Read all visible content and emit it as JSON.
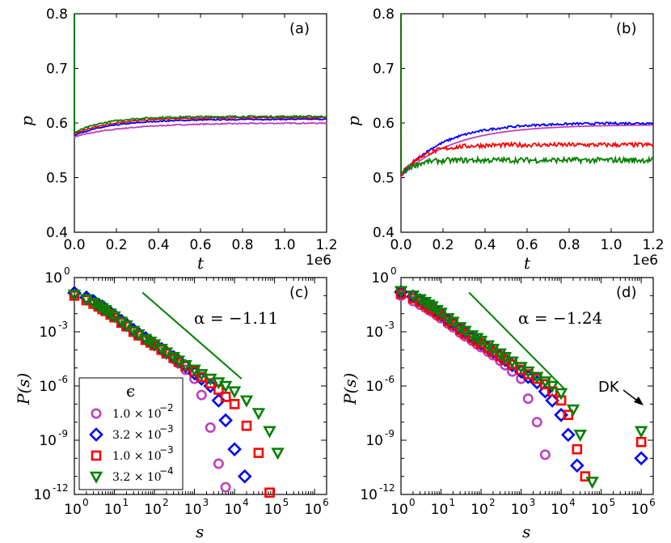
{
  "figure": {
    "y_label_p": "p",
    "x_label_t": "t",
    "y_label_P": "P(s)",
    "x_label_s": "s",
    "offset_text": "1e6",
    "dk_label": "DK"
  },
  "legend": {
    "title": "ϵ",
    "entries": [
      {
        "label": "1.0 × 10",
        "exp": "−2",
        "marker": "circle",
        "color": "#bf3fbf"
      },
      {
        "label": "3.2 × 10",
        "exp": "−3",
        "marker": "diamond",
        "color": "#0000ff"
      },
      {
        "label": "1.0 × 10",
        "exp": "−3",
        "marker": "square",
        "color": "#ff0000"
      },
      {
        "label": "3.2 × 10",
        "exp": "−4",
        "marker": "triangle-down",
        "color": "#008000"
      }
    ]
  },
  "chart_data": [
    {
      "panel": "(a)",
      "type": "line",
      "xlabel": "t",
      "ylabel": "p",
      "xlim": [
        0,
        1.2
      ],
      "ylim": [
        0.4,
        0.8
      ],
      "x_ticks": [
        "0.0",
        "0.2",
        "0.4",
        "0.6",
        "0.8",
        "1.0",
        "1.2"
      ],
      "y_ticks": [
        "0.4",
        "0.5",
        "0.6",
        "0.7",
        "0.8"
      ],
      "series": [
        {
          "name": "1.0e-2",
          "color": "#bf3fbf",
          "start": 0.575,
          "final": 0.6,
          "tau": 0.25,
          "noise": 0.001
        },
        {
          "name": "3.2e-3",
          "color": "#0000ff",
          "start": 0.578,
          "final": 0.607,
          "tau": 0.2,
          "noise": 0.001
        },
        {
          "name": "1.0e-3",
          "color": "#ff0000",
          "start": 0.58,
          "final": 0.61,
          "tau": 0.18,
          "noise": 0.001
        },
        {
          "name": "3.2e-4",
          "color": "#008000",
          "start": 0.582,
          "final": 0.612,
          "tau": 0.15,
          "noise": 0.0015
        }
      ]
    },
    {
      "panel": "(b)",
      "type": "line",
      "xlabel": "t",
      "ylabel": "p",
      "xlim": [
        0,
        1.2
      ],
      "ylim": [
        0.4,
        0.8
      ],
      "x_ticks": [
        "0.0",
        "0.2",
        "0.4",
        "0.6",
        "0.8",
        "1.0",
        "1.2"
      ],
      "y_ticks": [
        "0.4",
        "0.5",
        "0.6",
        "0.7",
        "0.8"
      ],
      "series": [
        {
          "name": "1.0e-2",
          "color": "#bf3fbf",
          "start": 0.502,
          "final": 0.597,
          "tau": 0.25,
          "noise": 0.0
        },
        {
          "name": "3.2e-3",
          "color": "#0000ff",
          "start": 0.503,
          "final": 0.6,
          "tau": 0.2,
          "noise": 0.002
        },
        {
          "name": "1.0e-3",
          "color": "#ff0000",
          "start": 0.504,
          "final": 0.56,
          "tau": 0.1,
          "noise": 0.004
        },
        {
          "name": "3.2e-4",
          "color": "#008000",
          "start": 0.505,
          "final": 0.532,
          "tau": 0.06,
          "noise": 0.005
        }
      ]
    },
    {
      "panel": "(c)",
      "type": "scatter",
      "xlabel": "s",
      "ylabel": "P(s)",
      "xscale": "log",
      "yscale": "log",
      "xlim_log10": [
        0,
        6.3
      ],
      "ylim_log10": [
        -12,
        0
      ],
      "annotation": "α = −1.11",
      "guide_line": {
        "s": [
          50,
          15000
        ],
        "P": [
          0.15,
          2.5e-06
        ]
      },
      "series": [
        {
          "name": "1.0e-2",
          "marker": "circle",
          "color": "#bf3fbf",
          "s": [
            1,
            2,
            3,
            4,
            5,
            6,
            8,
            10,
            15,
            20,
            30,
            40,
            60,
            80,
            100,
            150,
            200,
            300,
            400,
            600,
            1000,
            1500,
            2500,
            4000,
            6000
          ],
          "logP": [
            -0.9,
            -1.15,
            -1.35,
            -1.55,
            -1.65,
            -1.8,
            -2.0,
            -2.15,
            -2.45,
            -2.65,
            -2.95,
            -3.15,
            -3.4,
            -3.6,
            -3.75,
            -4.0,
            -4.2,
            -4.5,
            -4.75,
            -5.1,
            -5.6,
            -6.5,
            -8.3,
            -10.3,
            -11.6
          ]
        },
        {
          "name": "3.2e-3",
          "marker": "diamond",
          "color": "#0000ff",
          "s": [
            1,
            2,
            3,
            4,
            5,
            6,
            8,
            10,
            15,
            20,
            30,
            40,
            60,
            80,
            100,
            150,
            200,
            300,
            400,
            600,
            1000,
            1500,
            2500,
            4000,
            6000,
            10000,
            18000
          ],
          "logP": [
            -0.85,
            -1.1,
            -1.3,
            -1.5,
            -1.6,
            -1.75,
            -1.95,
            -2.1,
            -2.4,
            -2.6,
            -2.9,
            -3.1,
            -3.35,
            -3.55,
            -3.7,
            -3.95,
            -4.15,
            -4.4,
            -4.6,
            -4.9,
            -5.3,
            -5.6,
            -6.0,
            -6.8,
            -7.9,
            -9.5,
            -11.0
          ]
        },
        {
          "name": "1.0e-3",
          "marker": "square",
          "color": "#ff0000",
          "s": [
            1,
            2,
            3,
            4,
            5,
            6,
            8,
            10,
            15,
            20,
            30,
            40,
            60,
            80,
            100,
            150,
            200,
            300,
            400,
            600,
            1000,
            1500,
            2500,
            4000,
            6000,
            10000,
            20000,
            40000,
            75000
          ],
          "logP": [
            -1.0,
            -1.25,
            -1.45,
            -1.6,
            -1.75,
            -1.85,
            -2.05,
            -2.2,
            -2.5,
            -2.7,
            -3.0,
            -3.2,
            -3.45,
            -3.6,
            -3.75,
            -4.0,
            -4.2,
            -4.45,
            -4.65,
            -4.9,
            -5.2,
            -5.5,
            -5.85,
            -6.2,
            -6.6,
            -7.0,
            -8.2,
            -9.7,
            -11.9
          ]
        },
        {
          "name": "3.2e-4",
          "marker": "triangle-down",
          "color": "#008000",
          "s": [
            1,
            2,
            3,
            4,
            5,
            6,
            8,
            10,
            15,
            20,
            30,
            40,
            60,
            80,
            100,
            150,
            200,
            300,
            400,
            600,
            1000,
            1500,
            2500,
            4000,
            6000,
            10000,
            20000,
            40000,
            75000,
            120000
          ],
          "logP": [
            -0.95,
            -1.2,
            -1.4,
            -1.55,
            -1.7,
            -1.8,
            -2.0,
            -2.15,
            -2.45,
            -2.65,
            -2.95,
            -3.15,
            -3.4,
            -3.55,
            -3.7,
            -3.95,
            -4.15,
            -4.4,
            -4.6,
            -4.85,
            -5.1,
            -5.35,
            -5.6,
            -5.8,
            -6.0,
            -6.3,
            -6.8,
            -7.5,
            -8.5,
            -9.7
          ]
        }
      ]
    },
    {
      "panel": "(d)",
      "type": "scatter",
      "xlabel": "s",
      "ylabel": "P(s)",
      "xscale": "log",
      "yscale": "log",
      "xlim_log10": [
        0,
        6.3
      ],
      "ylim_log10": [
        -12,
        0
      ],
      "annotation": "α = −1.24",
      "guide_line": {
        "s": [
          50,
          12000
        ],
        "P": [
          0.15,
          7e-07
        ]
      },
      "series": [
        {
          "name": "1.0e-2",
          "marker": "circle",
          "color": "#bf3fbf",
          "s": [
            1,
            2,
            3,
            4,
            5,
            6,
            8,
            10,
            15,
            20,
            30,
            40,
            60,
            80,
            100,
            150,
            200,
            300,
            400,
            600,
            1000,
            1500,
            2500,
            4000
          ],
          "logP": [
            -1.0,
            -1.3,
            -1.5,
            -1.65,
            -1.8,
            -1.9,
            -2.1,
            -2.25,
            -2.55,
            -2.75,
            -3.05,
            -3.25,
            -3.5,
            -3.7,
            -3.85,
            -4.1,
            -4.3,
            -4.6,
            -4.85,
            -5.2,
            -5.6,
            -6.7,
            -8.0,
            -9.8
          ]
        },
        {
          "name": "3.2e-3",
          "marker": "diamond",
          "color": "#0000ff",
          "s": [
            1,
            2,
            3,
            4,
            5,
            6,
            8,
            10,
            15,
            20,
            30,
            40,
            60,
            80,
            100,
            150,
            200,
            300,
            400,
            600,
            1000,
            1500,
            2500,
            4000,
            6000,
            10000,
            15000,
            25000,
            1000000
          ],
          "logP": [
            -0.8,
            -1.05,
            -1.25,
            -1.45,
            -1.55,
            -1.7,
            -1.9,
            -2.05,
            -2.35,
            -2.55,
            -2.85,
            -3.05,
            -3.3,
            -3.5,
            -3.65,
            -3.9,
            -4.1,
            -4.35,
            -4.55,
            -4.85,
            -5.2,
            -5.5,
            -5.8,
            -6.3,
            -6.8,
            -7.6,
            -8.7,
            -10.4,
            -10.0
          ]
        },
        {
          "name": "1.0e-3",
          "marker": "square",
          "color": "#ff0000",
          "s": [
            1,
            2,
            3,
            4,
            5,
            6,
            8,
            10,
            15,
            20,
            30,
            40,
            60,
            80,
            100,
            150,
            200,
            300,
            400,
            600,
            1000,
            1500,
            2500,
            4000,
            6000,
            10000,
            15000,
            25000,
            40000,
            1000000
          ],
          "logP": [
            -0.9,
            -1.15,
            -1.35,
            -1.5,
            -1.65,
            -1.75,
            -1.95,
            -2.1,
            -2.4,
            -2.6,
            -2.9,
            -3.1,
            -3.35,
            -3.5,
            -3.65,
            -3.9,
            -4.1,
            -4.35,
            -4.55,
            -4.8,
            -5.1,
            -5.35,
            -5.6,
            -5.9,
            -6.3,
            -6.8,
            -7.6,
            -9.5,
            -11.0,
            -9.1
          ]
        },
        {
          "name": "3.2e-4",
          "marker": "triangle-down",
          "color": "#008000",
          "s": [
            1,
            2,
            3,
            4,
            5,
            6,
            8,
            10,
            15,
            20,
            30,
            40,
            60,
            80,
            100,
            150,
            200,
            300,
            400,
            600,
            1000,
            1500,
            2500,
            4000,
            6000,
            10000,
            20000,
            30000,
            60000,
            1000000
          ],
          "logP": [
            -0.75,
            -1.0,
            -1.2,
            -1.35,
            -1.5,
            -1.6,
            -1.8,
            -1.95,
            -2.25,
            -2.45,
            -2.75,
            -2.95,
            -3.2,
            -3.35,
            -3.5,
            -3.75,
            -3.95,
            -4.2,
            -4.4,
            -4.65,
            -4.95,
            -5.2,
            -5.5,
            -5.75,
            -6.0,
            -6.4,
            -7.3,
            -8.7,
            -11.3,
            -8.5
          ]
        }
      ]
    }
  ]
}
